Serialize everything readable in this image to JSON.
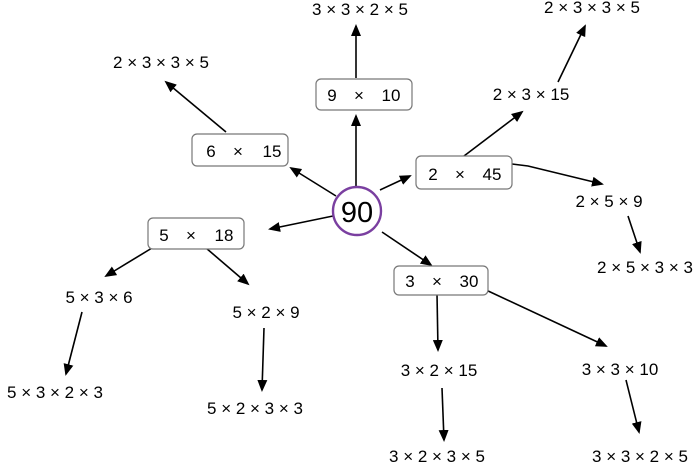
{
  "root": {
    "label": "90",
    "ring_color": "#7a3fa0"
  },
  "level1": {
    "f_9x10": {
      "a": "9",
      "op": "×",
      "b": "10"
    },
    "f_6x15": {
      "a": "6",
      "op": "×",
      "b": "15"
    },
    "f_2x45": {
      "a": "2",
      "op": "×",
      "b": "45"
    },
    "f_5x18": {
      "a": "5",
      "op": "×",
      "b": "18"
    },
    "f_3x30": {
      "a": "3",
      "op": "×",
      "b": "30"
    }
  },
  "level2": {
    "from_9x10": "3 × 3 × 2 × 5",
    "from_6x15": "2 × 3 × 3 × 5",
    "from_2x45_a": "2  ×  3  ×  15",
    "from_2x45_b": "2  ×  5  ×  9",
    "from_5x18_a": "5  ×  3  ×  6",
    "from_5x18_b": "5  ×  2  ×  9",
    "from_3x30_a": "3  ×  2  ×  15",
    "from_3x30_b": "3  ×  3  ×  10"
  },
  "level3": {
    "from_2x3x15": "2 × 3 × 3 × 5",
    "from_2x5x9": "2 × 5 × 3 × 3",
    "from_5x3x6": "5 × 3 × 2 × 3",
    "from_5x2x9": "5 × 2 × 3 × 3",
    "from_3x2x15": "3 × 2 × 3 × 5",
    "from_3x3x10": "3 × 3 × 2 × 5"
  }
}
